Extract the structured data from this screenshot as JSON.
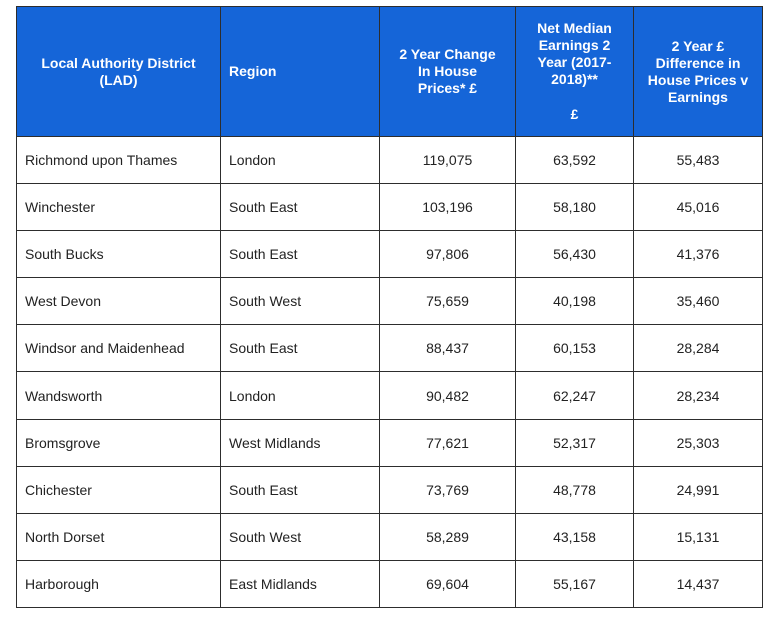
{
  "table": {
    "headers": [
      {
        "lines": [
          "Local Authority District",
          "(LAD)"
        ],
        "align": "center"
      },
      {
        "lines": [
          "Region"
        ],
        "align": "left"
      },
      {
        "lines": [
          "2 Year Change",
          "In House",
          "Prices* £"
        ],
        "align": "center"
      },
      {
        "lines": [
          "Net Median",
          "Earnings 2",
          "Year (2017-",
          "2018)**"
        ],
        "sub": "£",
        "align": "center"
      },
      {
        "lines": [
          "2 Year £",
          "Difference in",
          "House Prices v",
          "Earnings"
        ],
        "align": "center"
      }
    ],
    "rows": [
      [
        "Richmond upon Thames",
        "London",
        "119,075",
        "63,592",
        "55,483"
      ],
      [
        "Winchester",
        "South East",
        "103,196",
        "58,180",
        "45,016"
      ],
      [
        "South Bucks",
        "South East",
        "97,806",
        "56,430",
        "41,376"
      ],
      [
        "West Devon",
        "South West",
        "75,659",
        "40,198",
        "35,460"
      ],
      [
        "Windsor and Maidenhead",
        "South East",
        "88,437",
        "60,153",
        "28,284"
      ],
      [
        "Wandsworth",
        "London",
        "90,482",
        "62,247",
        "28,234"
      ],
      [
        "Bromsgrove",
        "West Midlands",
        "77,621",
        "52,317",
        "25,303"
      ],
      [
        "Chichester",
        "South East",
        "73,769",
        "48,778",
        "24,991"
      ],
      [
        "North Dorset",
        "South West",
        "58,289",
        "43,158",
        "15,131"
      ],
      [
        "Harborough",
        "East Midlands",
        "69,604",
        "55,167",
        "14,437"
      ]
    ]
  },
  "colors": {
    "header_bg": "#1565d8",
    "header_text": "#ffffff",
    "border": "#2d2d2d"
  }
}
